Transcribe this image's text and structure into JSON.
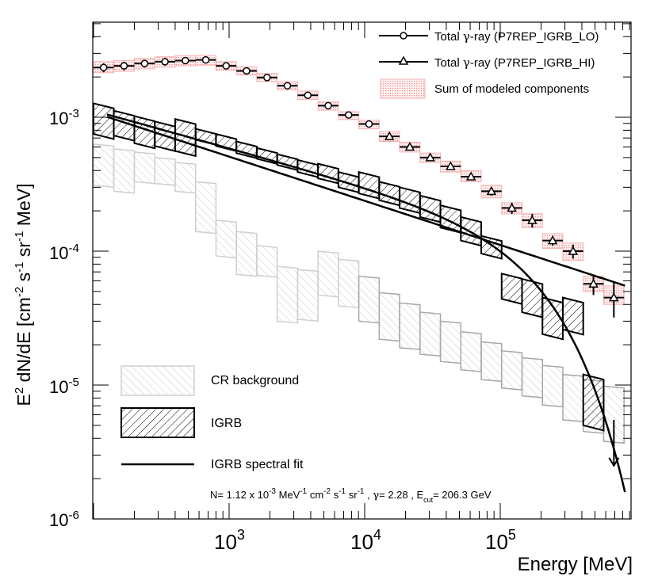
{
  "chart_data": {
    "type": "line",
    "xscale": "log",
    "yscale": "log",
    "xlim": [
      130,
      800000
    ],
    "ylim": [
      1e-06,
      0.005
    ],
    "xlabel": "Energy [MeV]",
    "ylabel": {
      "prefix": "E",
      "prefix_sup": "2",
      "main": " dN/dE [cm",
      "sup1": "-2",
      "mid1": " s",
      "sup2": "-1",
      "mid2": " sr",
      "sup3": "-1",
      "suffix": " MeV]"
    },
    "x_tick_labels": [
      {
        "base": "10",
        "exp": "3",
        "value": 1000
      },
      {
        "base": "10",
        "exp": "4",
        "value": 10000
      },
      {
        "base": "10",
        "exp": "5",
        "value": 100000
      }
    ],
    "y_tick_labels": [
      {
        "base": "10",
        "exp": "-3",
        "value": 0.001
      },
      {
        "base": "10",
        "exp": "-4",
        "value": 0.0001
      },
      {
        "base": "10",
        "exp": "-5",
        "value": 1e-05
      },
      {
        "base": "10",
        "exp": "-6",
        "value": 1e-06
      }
    ],
    "legend_top": [
      {
        "text_a": "Total ",
        "greek": "γ",
        "text_b": "-ray (P7REP_IGRB_LO)",
        "marker": "circle"
      },
      {
        "text_a": "Total ",
        "greek": "γ",
        "text_b": "-ray (P7REP_IGRB_HI)",
        "marker": "triangle"
      },
      {
        "text_a": "Sum of modeled components",
        "greek": "",
        "text_b": "",
        "marker": "pinkbox"
      }
    ],
    "legend_bottom": [
      {
        "label": "CR background",
        "style": "gray-hatch"
      },
      {
        "label": "IGRB",
        "style": "black-hatch"
      },
      {
        "label": "IGRB spectral fit",
        "style": "line"
      }
    ],
    "annotation": {
      "p1": "N= 1.12 x 10",
      "s1": "-3",
      "p2": " MeV",
      "s2": "-1",
      "p3": " cm",
      "s3": "-2",
      "p4": " s",
      "s4": "-1",
      "p5": " sr",
      "s5": "-1",
      "p6": " , ",
      "g": "γ",
      "p7": "= 2.28 , E",
      "sub": "cut",
      "p8": "= 206.3 GeV"
    },
    "colors": {
      "total": "#000000",
      "sum_band": "#f4b0b0",
      "igrb": "#000000",
      "cr_light": "#cfcfcf",
      "cr_dark": "#a8a8a8",
      "fit": "#000000"
    },
    "bins": [
      {
        "lo": 100,
        "hi": 141,
        "total_lo": 0.00235,
        "total_err": 0.00018,
        "sum_lo": 0.00215,
        "sum_hi": 0.0026,
        "igrb_lo": 0.00075,
        "igrb_hi": 0.00127,
        "cr_lo": 0.00031,
        "cr_hi": 0.00063
      },
      {
        "lo": 141,
        "hi": 200,
        "total_lo": 0.00242,
        "total_err": 0.00018,
        "sum_lo": 0.0022,
        "sum_hi": 0.00265,
        "igrb_lo": 0.00073,
        "igrb_hi": 0.00112,
        "cr_lo": 0.00028,
        "cr_hi": 0.00058
      },
      {
        "lo": 200,
        "hi": 283,
        "total_lo": 0.00252,
        "total_err": 0.00017,
        "sum_lo": 0.0023,
        "sum_hi": 0.00275,
        "igrb_lo": 0.00064,
        "igrb_hi": 0.00102,
        "cr_lo": 0.00033,
        "cr_hi": 0.00055
      },
      {
        "lo": 283,
        "hi": 400,
        "total_lo": 0.0026,
        "total_err": 0.00017,
        "sum_lo": 0.00237,
        "sum_hi": 0.00283,
        "igrb_lo": 0.00061,
        "igrb_hi": 0.00093,
        "cr_lo": 0.00032,
        "cr_hi": 0.0005
      },
      {
        "lo": 400,
        "hi": 566,
        "total_lo": 0.00265,
        "total_err": 0.00013,
        "sum_lo": 0.00242,
        "sum_hi": 0.00288,
        "igrb_lo": 0.00056,
        "igrb_hi": 0.00097,
        "cr_lo": 0.00028,
        "cr_hi": 0.00046
      },
      {
        "lo": 566,
        "hi": 800,
        "total_lo": 0.00268,
        "total_err": 0.0001,
        "sum_lo": 0.00245,
        "sum_hi": 0.0029,
        "igrb_lo": 0.00068,
        "igrb_hi": 0.00082,
        "cr_lo": 0.00014,
        "cr_hi": 0.00033
      },
      {
        "lo": 800,
        "hi": 1131,
        "total_lo": 0.00242,
        "total_err": 8e-05,
        "sum_lo": 0.00225,
        "sum_hi": 0.0026,
        "igrb_lo": 0.00061,
        "igrb_hi": 0.00075,
        "cr_lo": 9.2e-05,
        "cr_hi": 0.00017
      },
      {
        "lo": 1131,
        "hi": 1600,
        "total_lo": 0.00222,
        "total_err": 7e-05,
        "sum_lo": 0.00207,
        "sum_hi": 0.00238,
        "igrb_lo": 0.00054,
        "igrb_hi": 0.00066,
        "cr_lo": 6.7e-05,
        "cr_hi": 0.00014
      },
      {
        "lo": 1600,
        "hi": 2263,
        "total_lo": 0.00198,
        "total_err": 6e-05,
        "sum_lo": 0.00185,
        "sum_hi": 0.00212,
        "igrb_lo": 0.00049,
        "igrb_hi": 0.00059,
        "cr_lo": 6.6e-05,
        "cr_hi": 0.00011
      },
      {
        "lo": 2263,
        "hi": 3200,
        "total_lo": 0.00172,
        "total_err": 5e-05,
        "sum_lo": 0.0016,
        "sum_hi": 0.00184,
        "igrb_lo": 0.00044,
        "igrb_hi": 0.00053,
        "cr_lo": 3e-05,
        "cr_hi": 7.7e-05
      },
      {
        "lo": 3200,
        "hi": 4525,
        "total_lo": 0.00146,
        "total_err": 4e-05,
        "sum_lo": 0.00136,
        "sum_hi": 0.00157,
        "igrb_lo": 0.00039,
        "igrb_hi": 0.00048,
        "cr_lo": 3.1e-05,
        "cr_hi": 7.3e-05
      },
      {
        "lo": 4525,
        "hi": 6400,
        "total_lo": 0.00122,
        "total_err": 4e-05,
        "sum_lo": 0.00113,
        "sum_hi": 0.0013,
        "igrb_lo": 0.00035,
        "igrb_hi": 0.00045,
        "cr_lo": 4.7e-05,
        "cr_hi": 0.0001
      },
      {
        "lo": 6400,
        "hi": 9051,
        "total_lo": 0.00104,
        "total_err": 3e-05,
        "sum_lo": 0.00096,
        "sum_hi": 0.0011,
        "igrb_lo": 0.0003,
        "igrb_hi": 0.00039,
        "cr_lo": 3.9e-05,
        "cr_hi": 8.7e-05
      },
      {
        "lo": 9051,
        "hi": 12800,
        "total_lo": 0.00089,
        "total_err": 3e-05,
        "sum_lo": 0.00082,
        "sum_hi": 0.00095,
        "igrb_lo": 0.00027,
        "igrb_hi": 0.00039,
        "cr_lo": 3e-05,
        "cr_hi": 6.5e-05
      },
      {
        "lo": 12800,
        "hi": 18102,
        "total_lo": null,
        "total_hi": 0.00072,
        "total_err": 3e-05,
        "sum_lo": 0.00066,
        "sum_hi": 0.00078,
        "igrb_lo": 0.00024,
        "igrb_hi": 0.00033,
        "cr_lo": 2.2e-05,
        "cr_hi": 4.9e-05
      },
      {
        "lo": 18102,
        "hi": 25600,
        "total_hi": 0.0006,
        "total_err": 3e-05,
        "sum_lo": 0.00055,
        "sum_hi": 0.00065,
        "igrb_lo": 0.00021,
        "igrb_hi": 0.0003,
        "cr_lo": 1.9e-05,
        "cr_hi": 4.1e-05
      },
      {
        "lo": 25600,
        "hi": 36204,
        "total_hi": 0.0005,
        "total_err": 2e-05,
        "sum_lo": 0.00046,
        "sum_hi": 0.00054,
        "igrb_lo": 0.00018,
        "igrb_hi": 0.00026,
        "cr_lo": 1.7e-05,
        "cr_hi": 3.5e-05
      },
      {
        "lo": 36204,
        "hi": 51200,
        "total_hi": 0.00043,
        "total_err": 2e-05,
        "sum_lo": 0.00039,
        "sum_hi": 0.00047,
        "igrb_lo": 0.00015,
        "igrb_hi": 0.00022,
        "cr_lo": 1.5e-05,
        "cr_hi": 3e-05
      },
      {
        "lo": 51200,
        "hi": 72408,
        "total_hi": 0.00036,
        "total_err": 2e-05,
        "sum_lo": 0.00033,
        "sum_hi": 0.0004,
        "igrb_lo": 0.00012,
        "igrb_hi": 0.00018,
        "cr_lo": 1.3e-05,
        "cr_hi": 2.5e-05
      },
      {
        "lo": 72408,
        "hi": 102400,
        "total_hi": 0.00028,
        "total_err": 2e-05,
        "sum_lo": 0.00025,
        "sum_hi": 0.00031,
        "igrb_lo": 9.6e-05,
        "igrb_hi": 0.00013,
        "cr_lo": 1.1e-05,
        "cr_hi": 2.1e-05
      },
      {
        "lo": 102400,
        "hi": 144815,
        "total_hi": 0.00021,
        "total_err": 2e-05,
        "sum_lo": 0.00019,
        "sum_hi": 0.00023,
        "igrb_lo": 4.4e-05,
        "igrb_hi": 6.8e-05,
        "cr_lo": 9.5e-06,
        "cr_hi": 1.8e-05
      },
      {
        "lo": 144815,
        "hi": 204800,
        "total_hi": 0.00017,
        "total_err": 2e-05,
        "sum_lo": 0.00015,
        "sum_hi": 0.00019,
        "igrb_lo": 3.5e-05,
        "igrb_hi": 6.2e-05,
        "cr_lo": 8.3e-06,
        "cr_hi": 1.6e-05
      },
      {
        "lo": 204800,
        "hi": 289631,
        "total_hi": 0.00012,
        "total_err": 1e-05,
        "sum_lo": 0.000105,
        "sum_hi": 0.000135,
        "igrb_lo": 2.4e-05,
        "igrb_hi": 4.5e-05,
        "cr_lo": 7.1e-06,
        "cr_hi": 1.4e-05
      },
      {
        "lo": 289631,
        "hi": 409600,
        "total_hi": 0.0001,
        "total_err": 1.2e-05,
        "sum_lo": 8.5e-05,
        "sum_hi": 0.000115,
        "igrb_lo": 2.6e-05,
        "igrb_hi": 4.5e-05,
        "cr_lo": 5.5e-06,
        "cr_hi": 1.2e-05
      },
      {
        "lo": 409600,
        "hi": 579262,
        "total_hi": 5.7e-05,
        "total_err": 1e-05,
        "sum_lo": 5e-05,
        "sum_hi": 6.5e-05,
        "igrb_lo": 5e-06,
        "igrb_hi": 1.2e-05,
        "cr_lo": 4.5e-06,
        "cr_hi": 1.1e-05
      },
      {
        "lo": 579262,
        "hi": 819200,
        "total_hi": 4.5e-05,
        "total_err": 1.3e-05,
        "sum_lo": 4e-05,
        "sum_hi": 5.5e-05,
        "igrb_lo": null,
        "igrb_hi": null,
        "cr_lo": 3.8e-06,
        "cr_hi": 9.8e-06
      }
    ],
    "fit": {
      "norm": 0.00112,
      "gamma": 2.28,
      "ecut": 206300,
      "pivot": 100
    }
  }
}
